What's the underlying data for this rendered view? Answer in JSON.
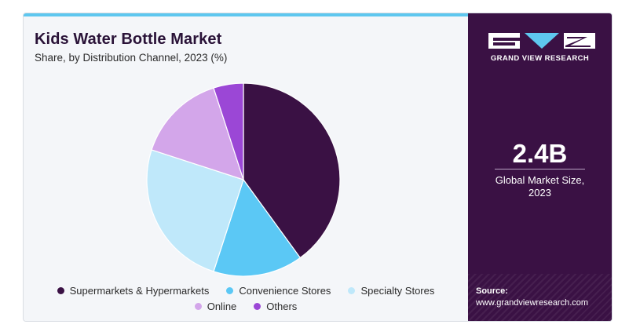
{
  "header": {
    "title": "Kids Water Bottle Market",
    "subtitle": "Share, by Distribution Channel, 2023 (%)"
  },
  "brand": {
    "name": "GRAND VIEW RESEARCH"
  },
  "stat": {
    "value": "2.4B",
    "label_line1": "Global Market Size,",
    "label_line2": "2023"
  },
  "source": {
    "label": "Source:",
    "url": "www.grandviewresearch.com"
  },
  "colors": {
    "accent_bar": "#5ec7ef",
    "panel": "#3a1144"
  },
  "chart_data": {
    "type": "pie",
    "title": "Kids Water Bottle Market",
    "subtitle": "Share, by Distribution Channel, 2023 (%)",
    "legend_position": "bottom",
    "series": [
      {
        "name": "Supermarkets & Hypermarkets",
        "value": 40,
        "color": "#3a1144"
      },
      {
        "name": "Convenience Stores",
        "value": 15,
        "color": "#5bc8f5"
      },
      {
        "name": "Specialty Stores",
        "value": 25,
        "color": "#bfe8fa"
      },
      {
        "name": "Online",
        "value": 15,
        "color": "#d3a6ea"
      },
      {
        "name": "Others",
        "value": 5,
        "color": "#9b47d6"
      }
    ]
  }
}
